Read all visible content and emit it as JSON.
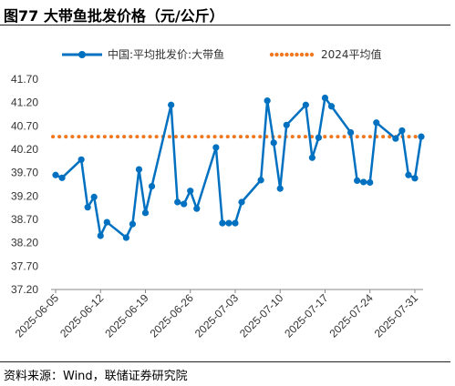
{
  "header": {
    "title": "图77 大带鱼批发价格（元/公斤）"
  },
  "footer": {
    "source": "资料来源：Wind，联储证券研究院"
  },
  "chart_data": {
    "type": "line",
    "title": "图77 大带鱼批发价格（元/公斤）",
    "xlabel": "",
    "ylabel": "",
    "ylim": [
      37.2,
      41.7
    ],
    "yticks": [
      "41.70",
      "41.20",
      "40.70",
      "40.20",
      "39.70",
      "39.20",
      "38.70",
      "38.20",
      "37.70",
      "37.20"
    ],
    "xticks": [
      "2025-06-05",
      "2025-06-12",
      "2025-06-19",
      "2025-06-26",
      "2025-07-03",
      "2025-07-10",
      "2025-07-17",
      "2025-07-24",
      "2025-07-31"
    ],
    "legend_position": "top",
    "series": [
      {
        "name": "中国:平均批发价:大带鱼",
        "color": "#0070C0",
        "points": [
          [
            "2025-06-05",
            39.65
          ],
          [
            "2025-06-06",
            39.59
          ],
          [
            "2025-06-09",
            39.98
          ],
          [
            "2025-06-10",
            38.96
          ],
          [
            "2025-06-11",
            39.18
          ],
          [
            "2025-06-12",
            38.35
          ],
          [
            "2025-06-13",
            38.64
          ],
          [
            "2025-06-16",
            38.31
          ],
          [
            "2025-06-17",
            38.6
          ],
          [
            "2025-06-18",
            39.77
          ],
          [
            "2025-06-19",
            38.84
          ],
          [
            "2025-06-20",
            39.41
          ],
          [
            "2025-06-23",
            41.15
          ],
          [
            "2025-06-24",
            39.07
          ],
          [
            "2025-06-25",
            39.03
          ],
          [
            "2025-06-26",
            39.31
          ],
          [
            "2025-06-27",
            38.93
          ],
          [
            "2025-06-30",
            40.24
          ],
          [
            "2025-07-01",
            38.62
          ],
          [
            "2025-07-02",
            38.62
          ],
          [
            "2025-07-03",
            38.62
          ],
          [
            "2025-07-04",
            39.07
          ],
          [
            "2025-07-07",
            39.54
          ],
          [
            "2025-07-08",
            41.24
          ],
          [
            "2025-07-09",
            40.34
          ],
          [
            "2025-07-10",
            39.36
          ],
          [
            "2025-07-11",
            40.72
          ],
          [
            "2025-07-14",
            41.15
          ],
          [
            "2025-07-15",
            40.02
          ],
          [
            "2025-07-16",
            40.45
          ],
          [
            "2025-07-17",
            41.3
          ],
          [
            "2025-07-18",
            41.12
          ],
          [
            "2025-07-21",
            40.56
          ],
          [
            "2025-07-22",
            39.53
          ],
          [
            "2025-07-23",
            39.5
          ],
          [
            "2025-07-24",
            39.49
          ],
          [
            "2025-07-25",
            40.77
          ],
          [
            "2025-07-28",
            40.43
          ],
          [
            "2025-07-29",
            40.6
          ],
          [
            "2025-07-30",
            39.65
          ],
          [
            "2025-07-31",
            39.58
          ],
          [
            "2025-08-01",
            40.47
          ]
        ]
      },
      {
        "name": "2024平均值",
        "color": "#F07820",
        "style": "dotted",
        "value": 40.47
      }
    ]
  }
}
